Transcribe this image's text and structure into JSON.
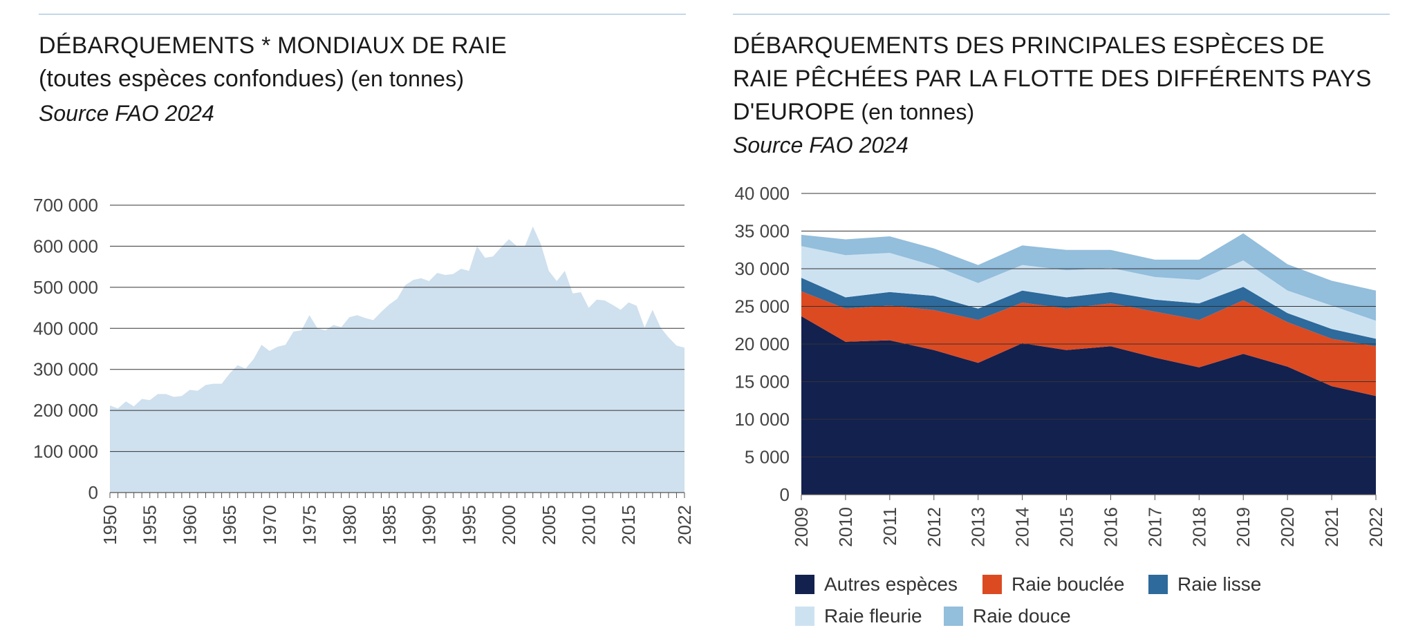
{
  "colors": {
    "area_light": "#cfe0ee",
    "autres": "#13214f",
    "bouclee": "#dc4a22",
    "lisse": "#2e6a9b",
    "fleurie": "#cde2f1",
    "douce": "#93bedc",
    "gridline": "#333333",
    "rule": "#8fb8d6"
  },
  "left": {
    "title_line1": "DÉBARQUEMENTS * MONDIAUX DE RAIE",
    "title_line2": "(toutes espèces confondues)",
    "title_unit": " (en tonnes)",
    "source": "Source FAO 2024"
  },
  "right": {
    "title_line1": "DÉBARQUEMENTS DES PRINCIPALES ESPÈCES DE",
    "title_line2": "RAIE PÊCHÉES PAR LA FLOTTE DES DIFFÉRENTS PAYS",
    "title_line3": "D'EUROPE",
    "title_unit": " (en tonnes)",
    "source": "Source FAO 2024"
  },
  "chart_data": [
    {
      "type": "area",
      "title": "DÉBARQUEMENTS * MONDIAUX DE RAIE (toutes espèces confondues) (en tonnes)",
      "xlabel": "",
      "ylabel": "",
      "ylim": [
        0,
        700000
      ],
      "grid": true,
      "y_ticks": [
        0,
        100000,
        200000,
        300000,
        400000,
        500000,
        600000,
        700000
      ],
      "y_tick_labels": [
        "0",
        "100 000",
        "200 000",
        "300 000",
        "400 000",
        "500 000",
        "600 000",
        "700 000"
      ],
      "x_tick_labels": [
        "1950",
        "1955",
        "1960",
        "1965",
        "1970",
        "1975",
        "1980",
        "1985",
        "1990",
        "1995",
        "2000",
        "2005",
        "2010",
        "2015",
        "2022"
      ],
      "x_ticks": [
        1950,
        1955,
        1960,
        1965,
        1970,
        1975,
        1980,
        1985,
        1990,
        1995,
        2000,
        2005,
        2010,
        2015,
        2022
      ],
      "x": [
        1950,
        1951,
        1952,
        1953,
        1954,
        1955,
        1956,
        1957,
        1958,
        1959,
        1960,
        1961,
        1962,
        1963,
        1964,
        1965,
        1966,
        1967,
        1968,
        1969,
        1970,
        1971,
        1972,
        1973,
        1974,
        1975,
        1976,
        1977,
        1978,
        1979,
        1980,
        1981,
        1982,
        1983,
        1984,
        1985,
        1986,
        1987,
        1988,
        1989,
        1990,
        1991,
        1992,
        1993,
        1994,
        1995,
        1996,
        1997,
        1998,
        1999,
        2000,
        2001,
        2002,
        2003,
        2004,
        2005,
        2006,
        2007,
        2008,
        2009,
        2010,
        2011,
        2012,
        2013,
        2014,
        2015,
        2016,
        2017,
        2018,
        2019,
        2020,
        2021,
        2022
      ],
      "values": [
        212000,
        205000,
        222000,
        210000,
        228000,
        225000,
        240000,
        240000,
        233000,
        235000,
        250000,
        248000,
        262000,
        265000,
        265000,
        290000,
        310000,
        302000,
        325000,
        360000,
        345000,
        355000,
        360000,
        392000,
        395000,
        432000,
        400000,
        395000,
        408000,
        403000,
        427000,
        432000,
        425000,
        420000,
        440000,
        458000,
        472000,
        505000,
        518000,
        522000,
        515000,
        535000,
        530000,
        532000,
        545000,
        540000,
        600000,
        572000,
        575000,
        597000,
        617000,
        600000,
        600000,
        648000,
        605000,
        540000,
        515000,
        540000,
        485000,
        488000,
        450000,
        470000,
        468000,
        457000,
        445000,
        463000,
        455000,
        402000,
        445000,
        402000,
        378000,
        358000,
        353000
      ]
    },
    {
      "type": "area",
      "stacked": true,
      "title": "DÉBARQUEMENTS DES PRINCIPALES ESPÈCES DE RAIE PÊCHÉES PAR LA FLOTTE DES DIFFÉRENTS PAYS D'EUROPE (en tonnes)",
      "xlabel": "",
      "ylabel": "",
      "ylim": [
        0,
        40000
      ],
      "grid": true,
      "legend_position": "bottom",
      "y_ticks": [
        0,
        5000,
        10000,
        15000,
        20000,
        25000,
        30000,
        35000,
        40000
      ],
      "y_tick_labels": [
        "0",
        "5 000",
        "10 000",
        "15 000",
        "20 000",
        "25 000",
        "30 000",
        "35 000",
        "40 000"
      ],
      "x_tick_labels": [
        "2009",
        "2010",
        "2011",
        "2012",
        "2013",
        "2014",
        "2015",
        "2016",
        "2017",
        "2018",
        "2019",
        "2020",
        "2021",
        "2022"
      ],
      "x": [
        2009,
        2010,
        2011,
        2012,
        2013,
        2014,
        2015,
        2016,
        2017,
        2018,
        2019,
        2020,
        2021,
        2022
      ],
      "series": [
        {
          "name": "Autres espèces",
          "color_key": "autres",
          "values": [
            23700,
            20300,
            20500,
            19200,
            17500,
            20100,
            19200,
            19700,
            18200,
            16900,
            18700,
            17000,
            14400,
            13100
          ]
        },
        {
          "name": "Raie bouclée",
          "color_key": "bouclee",
          "values": [
            3300,
            4400,
            4600,
            5300,
            5700,
            5400,
            5500,
            5700,
            6100,
            6300,
            7100,
            5900,
            6300,
            6600
          ]
        },
        {
          "name": "Raie lisse",
          "color_key": "lisse",
          "values": [
            1800,
            1500,
            1800,
            1900,
            1500,
            1600,
            1500,
            1500,
            1600,
            2200,
            1800,
            1200,
            1300,
            1000
          ]
        },
        {
          "name": "Raie fleurie",
          "color_key": "fleurie",
          "values": [
            4200,
            5600,
            5200,
            4000,
            3400,
            3400,
            3600,
            3200,
            3000,
            3100,
            3500,
            3000,
            3100,
            2400
          ]
        },
        {
          "name": "Raie douce",
          "color_key": "douce",
          "values": [
            1500,
            2100,
            2200,
            2300,
            2400,
            2600,
            2700,
            2400,
            2300,
            2700,
            3600,
            3500,
            3300,
            4000
          ]
        }
      ]
    }
  ]
}
